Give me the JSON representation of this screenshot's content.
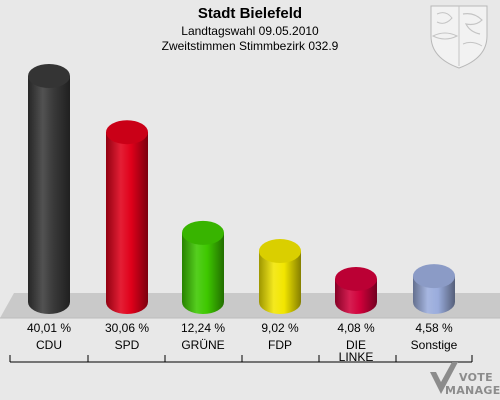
{
  "header": {
    "title": "Stadt Bielefeld",
    "subtitle1": "Landtagswahl 09.05.2010",
    "subtitle2": "Zweitstimmen Stimmbezirk 032.9"
  },
  "watermark": {
    "line1": "VOTE",
    "line2": "MANAGER"
  },
  "colors": {
    "background": "#e8e8e8",
    "floor": "#c9c9c9"
  },
  "chart_data": {
    "type": "bar",
    "title": "Stadt Bielefeld",
    "subtitle": "Landtagswahl 09.05.2010 — Zweitstimmen Stimmbezirk 032.9",
    "categories": [
      "CDU",
      "SPD",
      "GRÜNE",
      "FDP",
      "DIE LINKE",
      "Sonstige"
    ],
    "category_lines": [
      [
        "CDU"
      ],
      [
        "SPD"
      ],
      [
        "GRÜNE"
      ],
      [
        "FDP"
      ],
      [
        "DIE",
        "LINKE"
      ],
      [
        "Sonstige"
      ]
    ],
    "values": [
      40.01,
      30.06,
      12.24,
      9.02,
      4.08,
      4.58
    ],
    "value_labels": [
      "40,01 %",
      "30,06 %",
      "12,24 %",
      "9,02 %",
      "4,08 %",
      "4,58 %"
    ],
    "colors": [
      "#3a3a3a",
      "#e0001a",
      "#3ec800",
      "#f2e600",
      "#d0003a",
      "#9aacdc"
    ],
    "ylim": [
      0,
      40.01
    ],
    "grid": false,
    "legend": "none"
  }
}
